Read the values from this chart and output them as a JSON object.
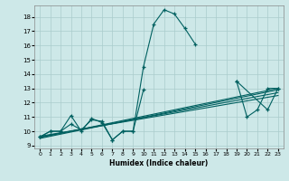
{
  "xlabel": "Humidex (Indice chaleur)",
  "background_color": "#cde8e8",
  "grid_color": "#aacccc",
  "line_color": "#006060",
  "xlim": [
    -0.5,
    23.5
  ],
  "ylim": [
    8.8,
    18.8
  ],
  "xticks": [
    0,
    1,
    2,
    3,
    4,
    5,
    6,
    7,
    8,
    9,
    10,
    11,
    12,
    13,
    14,
    15,
    16,
    17,
    18,
    19,
    20,
    21,
    22,
    23
  ],
  "yticks": [
    9,
    10,
    11,
    12,
    13,
    14,
    15,
    16,
    17,
    18
  ],
  "trend_lines": [
    [
      [
        0,
        23
      ],
      [
        9.6,
        12.7
      ]
    ],
    [
      [
        0,
        23
      ],
      [
        9.65,
        12.5
      ]
    ],
    [
      [
        0,
        23
      ],
      [
        9.55,
        13.0
      ]
    ],
    [
      [
        0,
        23
      ],
      [
        9.5,
        12.9
      ]
    ]
  ],
  "main_curve_segments": [
    {
      "x": [
        0,
        1,
        2,
        3,
        4,
        5,
        6,
        7,
        8,
        9,
        10,
        11,
        12,
        13,
        14,
        15
      ],
      "y": [
        9.6,
        10.0,
        10.0,
        11.1,
        10.0,
        10.9,
        10.6,
        9.4,
        10.0,
        10.0,
        14.5,
        17.5,
        18.5,
        18.2,
        17.2,
        16.1
      ]
    },
    {
      "x": [
        19,
        20,
        21,
        22,
        23
      ],
      "y": [
        13.5,
        11.0,
        11.5,
        13.0,
        13.0
      ]
    }
  ],
  "lower_curve_segments": [
    {
      "x": [
        0,
        1,
        2,
        3,
        4,
        5,
        6,
        7,
        8,
        9,
        10
      ],
      "y": [
        9.6,
        10.0,
        10.0,
        10.5,
        10.1,
        10.8,
        10.7,
        9.4,
        10.0,
        10.0,
        12.9
      ]
    },
    {
      "x": [
        19,
        22,
        23
      ],
      "y": [
        13.5,
        11.5,
        13.0
      ]
    }
  ]
}
